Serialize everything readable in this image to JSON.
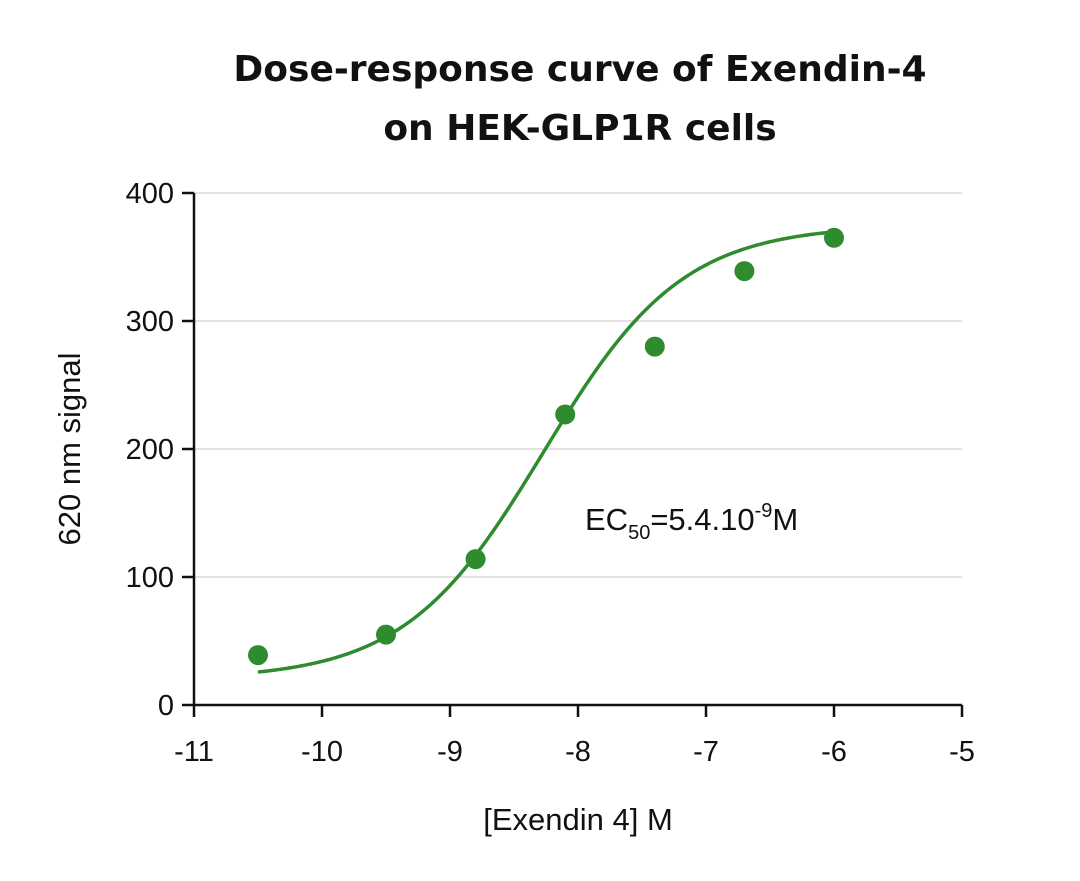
{
  "chart_data": {
    "type": "scatter",
    "title_lines": [
      "Dose-response curve of Exendin-4",
      "on HEK-GLP1R cells"
    ],
    "xlabel": "[Exendin 4] M",
    "ylabel": "620 nm signal",
    "xlim": [
      -11,
      -5
    ],
    "ylim": [
      0,
      400
    ],
    "x_ticks": [
      -11,
      -10,
      -9,
      -8,
      -7,
      -6,
      -5
    ],
    "y_ticks": [
      0,
      100,
      200,
      300,
      400
    ],
    "grid": "horizontal",
    "color": "#2e8b2e",
    "points": {
      "x": [
        -10.5,
        -9.5,
        -8.8,
        -8.1,
        -7.4,
        -6.7,
        -6.0
      ],
      "y": [
        39,
        55,
        114,
        227,
        280,
        339,
        365
      ]
    },
    "fit_curve": {
      "model": "4PL",
      "bottom": 20,
      "top": 375,
      "log_ec50": -8.27,
      "hill": 0.8,
      "x_range": [
        -10.5,
        -6.0
      ]
    },
    "annotation": {
      "base": "EC",
      "sub": "50",
      "mid": "=5.4.10",
      "sup": "-9",
      "end": "M"
    }
  }
}
